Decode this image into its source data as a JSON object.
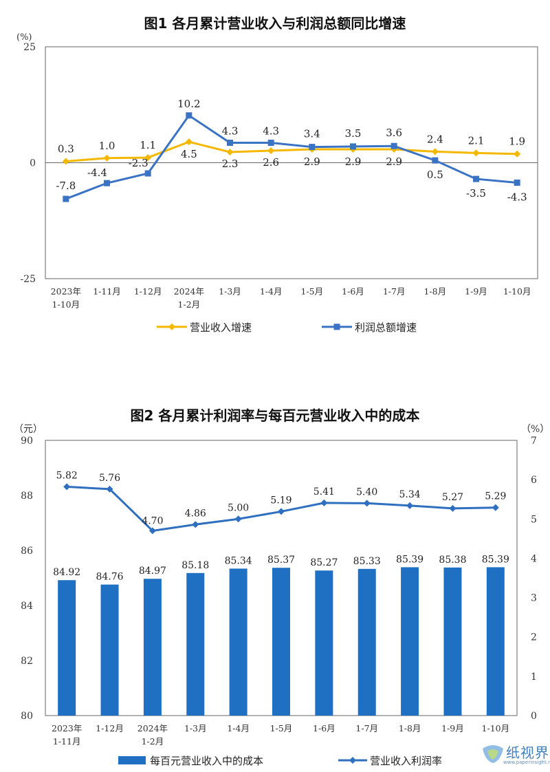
{
  "chart_data": [
    {
      "type": "line",
      "title": "图1  各月累计营业收入与利润总额同比增速",
      "yunit": "(%)",
      "ylim": [
        -25,
        25
      ],
      "yticks": [
        "25",
        "0",
        "-25"
      ],
      "categories": [
        [
          "2023年",
          "1-10月"
        ],
        [
          "1-11月"
        ],
        [
          "1-12月"
        ],
        [
          "2024年",
          "1-2月"
        ],
        [
          "1-3月"
        ],
        [
          "1-4月"
        ],
        [
          "1-5月"
        ],
        [
          "1-6月"
        ],
        [
          "1-7月"
        ],
        [
          "1-8月"
        ],
        [
          "1-9月"
        ],
        [
          "1-10月"
        ]
      ],
      "series": [
        {
          "name": "营业收入增速",
          "color": "#f5b800",
          "marker": "diamond",
          "values": [
            0.3,
            1.0,
            1.1,
            4.5,
            2.3,
            2.6,
            2.9,
            2.9,
            2.9,
            2.4,
            2.1,
            1.9
          ],
          "labels": [
            "0.3",
            "1.0",
            "1.1",
            "4.5",
            "2.3",
            "2.6",
            "2.9",
            "2.9",
            "2.9",
            "2.4",
            "2.1",
            "1.9"
          ]
        },
        {
          "name": "利润总额增速",
          "color": "#3a72c4",
          "marker": "square",
          "values": [
            -7.8,
            -4.4,
            -2.3,
            10.2,
            4.3,
            4.3,
            3.4,
            3.5,
            3.6,
            0.5,
            -3.5,
            -4.3
          ],
          "labels": [
            "-7.8",
            "-4.4",
            "-2.3",
            "10.2",
            "4.3",
            "4.3",
            "3.4",
            "3.5",
            "3.6",
            "0.5",
            "-3.5",
            "-4.3"
          ]
        }
      ],
      "grid": false,
      "legend": "bottom"
    },
    {
      "type": "bar",
      "title": "图2  各月累计利润率与每百元营业收入中的成本",
      "yunit_left": "（元）",
      "yunit_right": "（%）",
      "ylim_left": [
        80,
        90
      ],
      "ylim_right": [
        0,
        7
      ],
      "yticks_left": [
        "90",
        "88",
        "86",
        "84",
        "82",
        "80"
      ],
      "yticks_right": [
        "7",
        "6",
        "5",
        "4",
        "3",
        "2",
        "1",
        "0"
      ],
      "categories": [
        [
          "2023年",
          "1-11月"
        ],
        [
          "1-12月"
        ],
        [
          "2024年",
          "1-2月"
        ],
        [
          "1-3月"
        ],
        [
          "1-4月"
        ],
        [
          "1-5月"
        ],
        [
          "1-6月"
        ],
        [
          "1-7月"
        ],
        [
          "1-8月"
        ],
        [
          "1-9月"
        ],
        [
          "1-10月"
        ]
      ],
      "series": [
        {
          "name": "每百元营业收入中的成本",
          "kind": "bar",
          "axis": "left",
          "color": "#1f6fc2",
          "values": [
            84.92,
            84.76,
            84.97,
            85.18,
            85.34,
            85.37,
            85.27,
            85.33,
            85.39,
            85.38,
            85.39
          ],
          "labels": [
            "84.92",
            "84.76",
            "84.97",
            "85.18",
            "85.34",
            "85.37",
            "85.27",
            "85.33",
            "85.39",
            "85.38",
            "85.39"
          ]
        },
        {
          "name": "营业收入利润率",
          "kind": "line",
          "axis": "right",
          "color": "#2e6fc0",
          "marker": "diamond",
          "values": [
            5.82,
            5.76,
            4.7,
            4.86,
            5.0,
            5.19,
            5.41,
            5.4,
            5.34,
            5.27,
            5.29
          ],
          "labels": [
            "5.82",
            "5.76",
            "4.70",
            "4.86",
            "5.00",
            "5.19",
            "5.41",
            "5.40",
            "5.34",
            "5.27",
            "5.29"
          ]
        }
      ],
      "grid": false,
      "legend": "bottom"
    }
  ],
  "watermark": {
    "name": "纸视界",
    "url": "www.paperinsight.net"
  }
}
